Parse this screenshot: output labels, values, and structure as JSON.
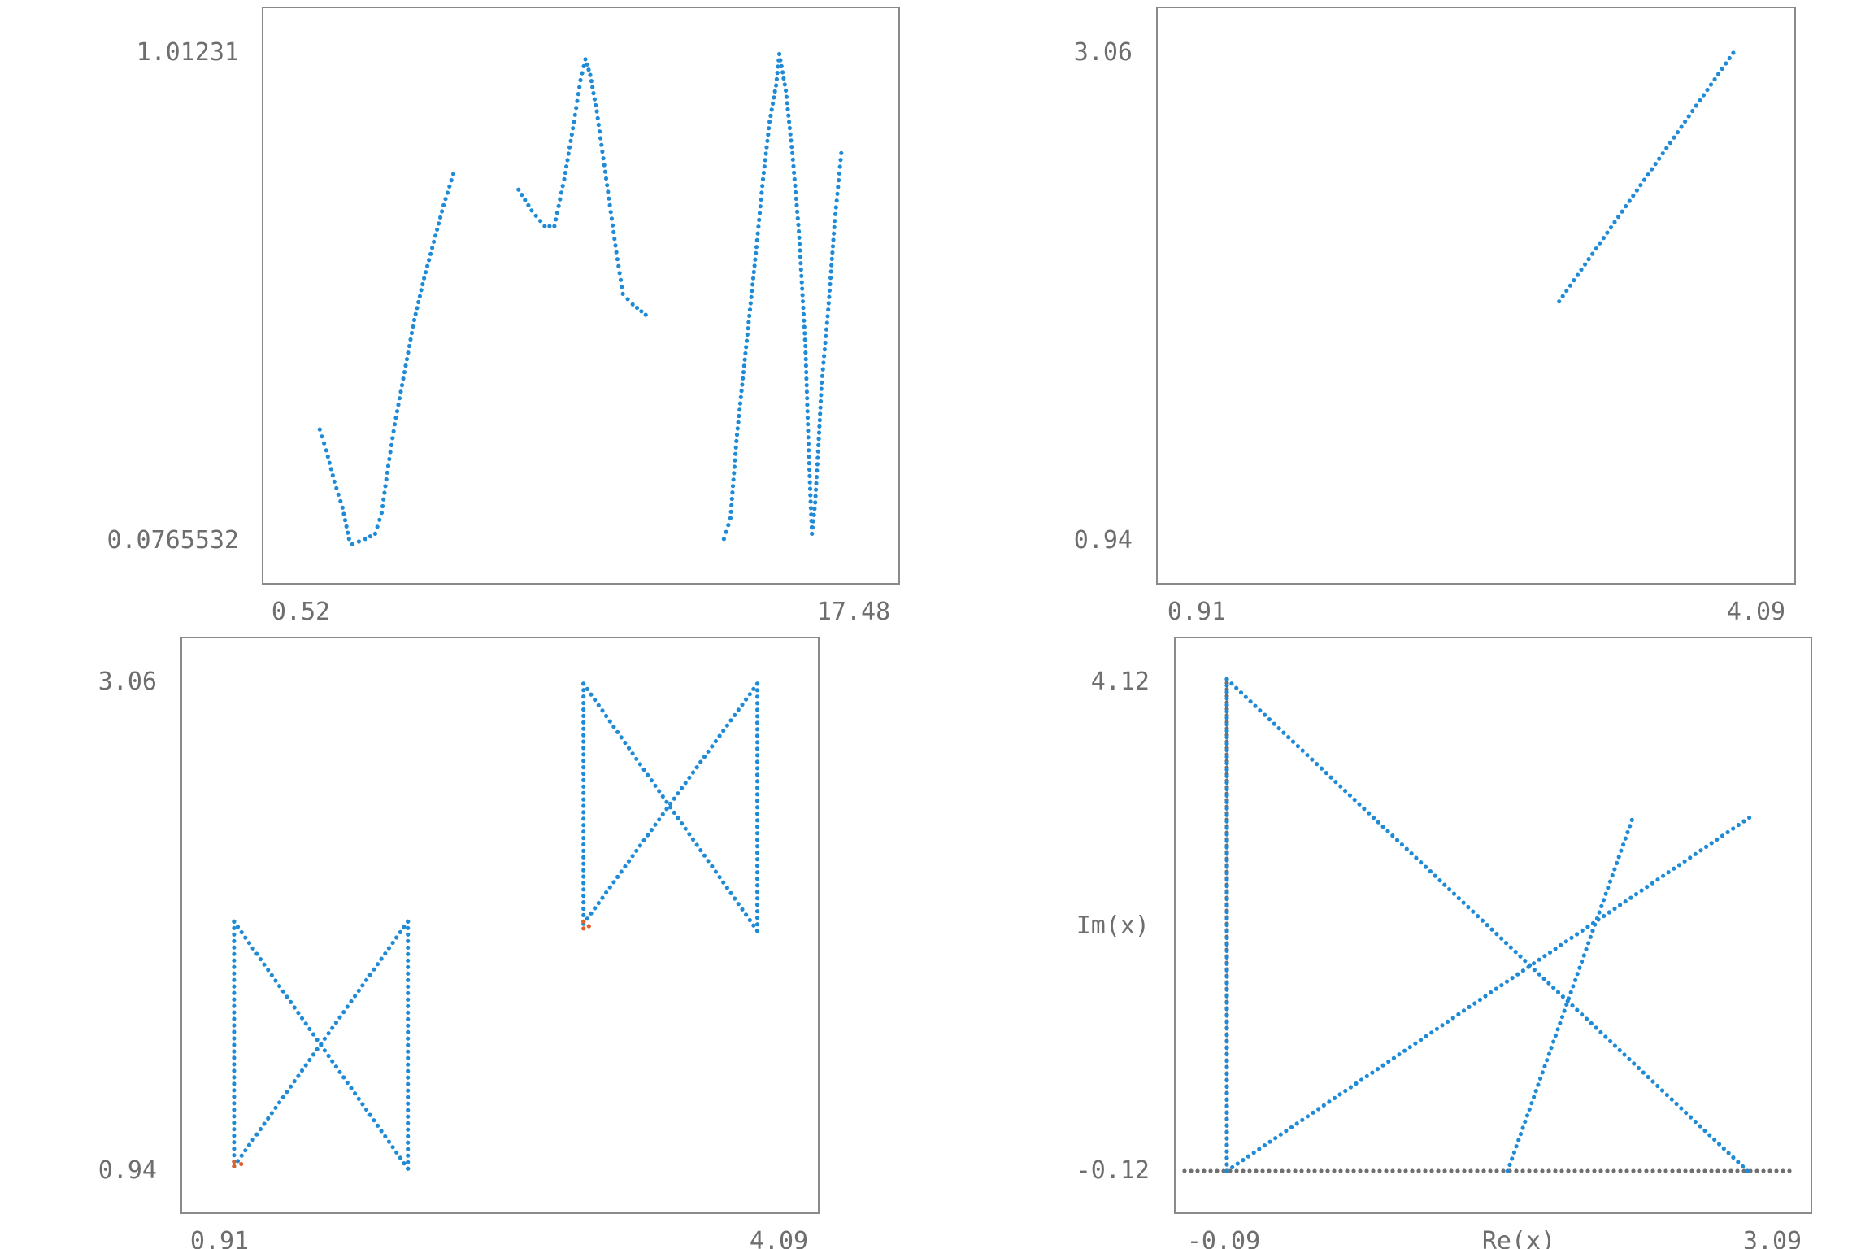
{
  "colors": {
    "series": "#1f8ad6",
    "highlight": "#e0602a",
    "axis_points": "#707070",
    "frame": "#8a8a8a",
    "text": "#6e6e6e"
  },
  "chart_data": [
    {
      "type": "scatter",
      "title": "",
      "xlabel": "",
      "ylabel": "",
      "x_ticks": [
        "0.52",
        "17.48"
      ],
      "y_ticks": [
        "1.01231",
        "0.0765532"
      ],
      "xlim": [
        0.52,
        17.48
      ],
      "ylim": [
        0.0765532,
        1.01231
      ],
      "series": [
        {
          "segments": [
            [
              [
                1.1,
                0.29
              ],
              [
                1.3,
                0.25
              ],
              [
                1.55,
                0.19
              ],
              [
                1.8,
                0.14
              ],
              [
                2.0,
                0.08
              ],
              [
                2.1,
                0.07
              ],
              [
                2.5,
                0.08
              ],
              [
                2.8,
                0.09
              ],
              [
                3.0,
                0.13
              ],
              [
                3.2,
                0.22
              ],
              [
                3.4,
                0.3
              ],
              [
                3.7,
                0.4
              ],
              [
                4.0,
                0.5
              ],
              [
                4.3,
                0.58
              ],
              [
                4.6,
                0.65
              ],
              [
                4.9,
                0.72
              ],
              [
                5.2,
                0.78
              ]
            ],
            [
              [
                7.2,
                0.75
              ],
              [
                7.6,
                0.71
              ],
              [
                8.0,
                0.68
              ],
              [
                8.3,
                0.68
              ],
              [
                8.6,
                0.77
              ],
              [
                8.9,
                0.88
              ],
              [
                9.1,
                0.96
              ],
              [
                9.25,
                1.0
              ],
              [
                9.4,
                0.97
              ],
              [
                9.6,
                0.9
              ],
              [
                9.8,
                0.81
              ],
              [
                10.0,
                0.72
              ],
              [
                10.2,
                0.63
              ],
              [
                10.4,
                0.55
              ],
              [
                10.7,
                0.53
              ],
              [
                11.1,
                0.51
              ]
            ],
            [
              [
                13.5,
                0.08
              ],
              [
                13.7,
                0.12
              ],
              [
                13.9,
                0.28
              ],
              [
                14.1,
                0.4
              ],
              [
                14.3,
                0.52
              ],
              [
                14.5,
                0.64
              ],
              [
                14.7,
                0.77
              ],
              [
                14.9,
                0.88
              ],
              [
                15.1,
                0.95
              ],
              [
                15.2,
                1.01
              ],
              [
                15.4,
                0.94
              ],
              [
                15.6,
                0.82
              ],
              [
                15.8,
                0.67
              ],
              [
                16.0,
                0.45
              ],
              [
                16.1,
                0.25
              ],
              [
                16.2,
                0.09
              ],
              [
                16.3,
                0.15
              ],
              [
                16.4,
                0.26
              ],
              [
                16.5,
                0.38
              ],
              [
                16.7,
                0.52
              ],
              [
                16.9,
                0.69
              ],
              [
                17.1,
                0.82
              ]
            ]
          ]
        }
      ],
      "highlight_points": []
    },
    {
      "type": "scatter",
      "title": "",
      "xlabel": "",
      "ylabel": "",
      "x_ticks": [
        "0.91",
        "4.09"
      ],
      "y_ticks": [
        "3.06",
        "0.94"
      ],
      "xlim": [
        0.91,
        4.09
      ],
      "ylim": [
        0.94,
        3.06
      ],
      "series": [
        {
          "segments": [
            [
              [
                2.97,
                1.98
              ],
              [
                3.96,
                3.06
              ]
            ]
          ]
        }
      ],
      "highlight_points": []
    },
    {
      "type": "scatter",
      "title": "",
      "xlabel": "",
      "ylabel": "",
      "x_ticks": [
        "0.91",
        "4.09"
      ],
      "y_ticks": [
        "3.06",
        "0.94"
      ],
      "xlim": [
        0.91,
        4.09
      ],
      "ylim": [
        0.94,
        3.06
      ],
      "series": [
        {
          "segments": [
            [
              [
                1.05,
                0.98
              ],
              [
                1.05,
                2.02
              ]
            ],
            [
              [
                1.05,
                2.02
              ],
              [
                2.02,
                0.95
              ]
            ],
            [
              [
                1.05,
                0.96
              ],
              [
                2.02,
                2.02
              ]
            ],
            [
              [
                2.02,
                2.02
              ],
              [
                2.02,
                0.95
              ]
            ],
            [
              [
                3.0,
                2.02
              ],
              [
                3.0,
                3.05
              ]
            ],
            [
              [
                3.0,
                3.05
              ],
              [
                3.97,
                1.98
              ]
            ],
            [
              [
                3.0,
                2.01
              ],
              [
                3.97,
                3.05
              ]
            ],
            [
              [
                3.97,
                3.05
              ],
              [
                3.97,
                1.98
              ]
            ]
          ]
        }
      ],
      "highlight_points": [
        [
          1.05,
          0.98
        ],
        [
          1.05,
          0.96
        ],
        [
          1.09,
          0.97
        ],
        [
          3.0,
          2.02
        ],
        [
          3.0,
          1.99
        ],
        [
          3.03,
          2.0
        ]
      ]
    },
    {
      "type": "scatter",
      "title": "",
      "xlabel": "Re(x)",
      "ylabel": "Im(x)",
      "x_ticks": [
        "-0.09",
        "3.09"
      ],
      "y_ticks": [
        "4.12",
        "-0.12"
      ],
      "xlim": [
        -0.09,
        3.09
      ],
      "ylim": [
        -0.12,
        4.12
      ],
      "series": [
        {
          "segments": [
            [
              [
                0.02,
                4.14
              ],
              [
                2.95,
                -0.12
              ]
            ],
            [
              [
                0.02,
                -0.12
              ],
              [
                2.96,
                2.94
              ]
            ],
            [
              [
                1.6,
                -0.12
              ],
              [
                2.3,
                2.92
              ]
            ],
            [
              [
                0.02,
                4.14
              ],
              [
                0.02,
                -0.12
              ]
            ]
          ]
        }
      ],
      "axis_points": {
        "horizontal": {
          "y": -0.12,
          "x_range": [
            -0.09,
            3.09
          ]
        },
        "vertical": {
          "x": 0.02,
          "y_range": [
            -0.12,
            4.12
          ]
        }
      },
      "highlight_points": []
    }
  ]
}
